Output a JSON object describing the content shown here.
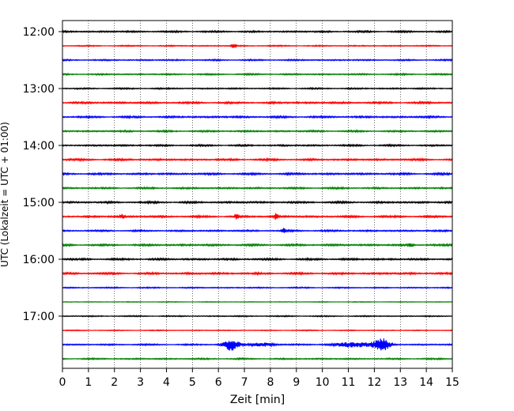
{
  "chart_data": {
    "type": "line",
    "title": "",
    "xlabel": "Zeit  [min]",
    "ylabel": "UTC (Lokalzeit = UTC + 01:00)",
    "xlim": [
      0,
      15
    ],
    "x_ticks": [
      "0",
      "1",
      "2",
      "3",
      "4",
      "5",
      "6",
      "7",
      "8",
      "9",
      "10",
      "11",
      "12",
      "13",
      "14",
      "15"
    ],
    "y_tick_labels": [
      "12:00",
      "13:00",
      "14:00",
      "15:00",
      "16:00",
      "17:00"
    ],
    "grid": "vertical-dotted",
    "legend": "none",
    "trace_colors": [
      "#000000",
      "#ff0000",
      "#0000ff",
      "#008000"
    ],
    "traces": [
      {
        "time": "12:00",
        "color": "#000000",
        "amplitude": 0.7
      },
      {
        "time": "12:15",
        "color": "#ff0000",
        "amplitude": 0.5,
        "events": [
          {
            "t": 6.6,
            "a": 3
          }
        ]
      },
      {
        "time": "12:30",
        "color": "#0000ff",
        "amplitude": 0.6
      },
      {
        "time": "12:45",
        "color": "#008000",
        "amplitude": 0.6
      },
      {
        "time": "13:00",
        "color": "#000000",
        "amplitude": 0.6
      },
      {
        "time": "13:15",
        "color": "#ff0000",
        "amplitude": 0.8
      },
      {
        "time": "13:30",
        "color": "#0000ff",
        "amplitude": 0.8
      },
      {
        "time": "13:45",
        "color": "#008000",
        "amplitude": 0.7
      },
      {
        "time": "14:00",
        "color": "#000000",
        "amplitude": 0.7
      },
      {
        "time": "14:15",
        "color": "#ff0000",
        "amplitude": 0.8
      },
      {
        "time": "14:30",
        "color": "#0000ff",
        "amplitude": 0.8
      },
      {
        "time": "14:45",
        "color": "#008000",
        "amplitude": 0.7
      },
      {
        "time": "15:00",
        "color": "#000000",
        "amplitude": 0.8
      },
      {
        "time": "15:15",
        "color": "#ff0000",
        "amplitude": 0.8,
        "events": [
          {
            "t": 2.3,
            "a": 2.5
          },
          {
            "t": 8.2,
            "a": 4
          },
          {
            "t": 6.7,
            "a": 2.5
          }
        ]
      },
      {
        "time": "15:30",
        "color": "#0000ff",
        "amplitude": 0.7,
        "events": [
          {
            "t": 8.5,
            "a": 3
          }
        ]
      },
      {
        "time": "15:45",
        "color": "#008000",
        "amplitude": 0.8,
        "events": [
          {
            "t": 13.4,
            "a": 2.5
          }
        ]
      },
      {
        "time": "16:00",
        "color": "#000000",
        "amplitude": 0.8
      },
      {
        "time": "16:15",
        "color": "#ff0000",
        "amplitude": 0.8
      },
      {
        "time": "16:30",
        "color": "#0000ff",
        "amplitude": 0.5
      },
      {
        "time": "16:45",
        "color": "#008000",
        "amplitude": 0.3
      },
      {
        "time": "17:00",
        "color": "#000000",
        "amplitude": 0.5
      },
      {
        "time": "17:15",
        "color": "#ff0000",
        "amplitude": 0.4
      },
      {
        "time": "17:30",
        "color": "#0000ff",
        "amplitude": 0.6,
        "bursts": [
          {
            "t": 6.5,
            "a": 7,
            "w": 0.3
          },
          {
            "t": 12.3,
            "a": 7,
            "w": 0.3
          },
          {
            "t": 7.7,
            "a": 2,
            "w": 0.5
          },
          {
            "t": 11.3,
            "a": 3,
            "w": 0.8
          }
        ]
      },
      {
        "time": "17:45",
        "color": "#008000",
        "amplitude": 0.6
      }
    ]
  }
}
